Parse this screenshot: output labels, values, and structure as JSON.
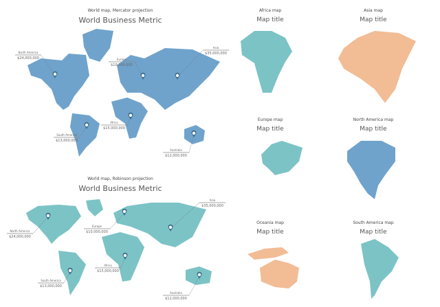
{
  "colors": {
    "blue": "#6fa3cc",
    "teal": "#7cc3c6",
    "peach": "#f2bc94",
    "pin": "#3f6f8c"
  },
  "mercator": {
    "subtitle": "World map, Mercator projection",
    "title": "World Business Metric",
    "callouts": [
      {
        "region": "North America",
        "value": "$24,000,000"
      },
      {
        "region": "Europe",
        "value": "$10,000,000"
      },
      {
        "region": "Asia",
        "value": "$35,000,000"
      },
      {
        "region": "Africa",
        "value": "$15,000,000"
      },
      {
        "region": "South America",
        "value": "$13,000,000"
      },
      {
        "region": "Australia",
        "value": "$12,000,000"
      }
    ]
  },
  "robinson": {
    "subtitle": "World map, Robinson projection",
    "title": "World Business Metric",
    "callouts": [
      {
        "region": "North America",
        "value": "$24,000,000"
      },
      {
        "region": "Europe",
        "value": "$10,000,000"
      },
      {
        "region": "Asia",
        "value": "$35,000,000"
      },
      {
        "region": "Africa",
        "value": "$15,000,000"
      },
      {
        "region": "South America",
        "value": "$13,000,000"
      },
      {
        "region": "Australia",
        "value": "$12,000,000"
      }
    ]
  },
  "regional_maps": [
    {
      "subtitle": "Africa map",
      "title": "Map title"
    },
    {
      "subtitle": "Asia map",
      "title": "Map title"
    },
    {
      "subtitle": "Europe map",
      "title": "Map title"
    },
    {
      "subtitle": "North America map",
      "title": "Map title"
    },
    {
      "subtitle": "Oceania map",
      "title": "Map title"
    },
    {
      "subtitle": "South America map",
      "title": "Map title"
    }
  ]
}
